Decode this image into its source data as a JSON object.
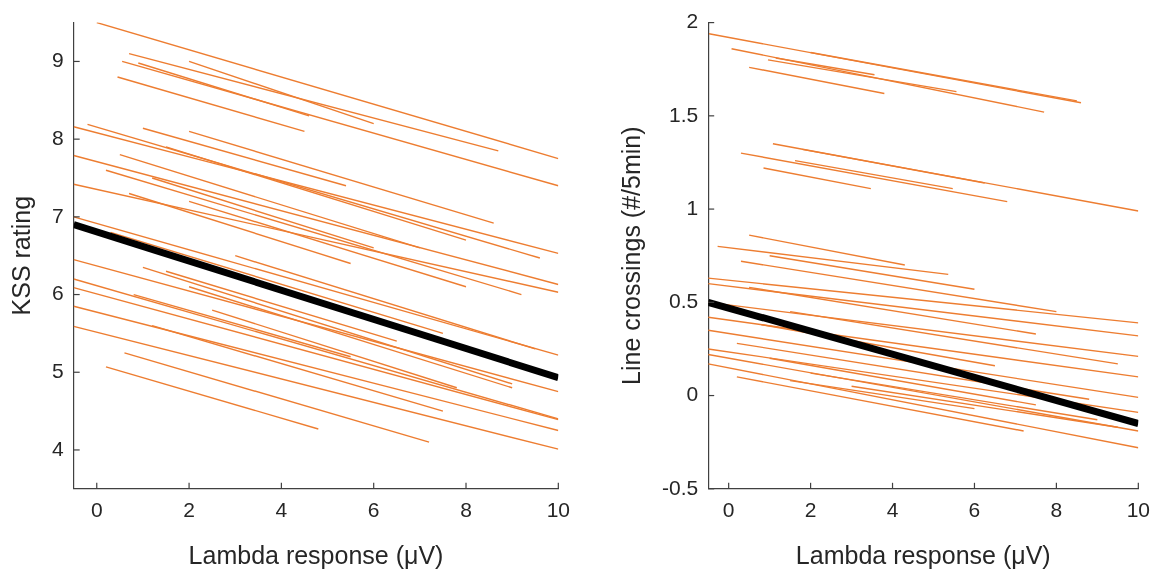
{
  "chart_data": [
    {
      "type": "line",
      "xlabel": "Lambda response (μV)",
      "ylabel": "KSS rating",
      "xlim": [
        -0.5,
        10
      ],
      "xticks": [
        0,
        2,
        4,
        6,
        8,
        10
      ],
      "ylim": [
        3.5,
        9.5
      ],
      "yticks": [
        4,
        5,
        6,
        7,
        8,
        9
      ],
      "series": [
        {
          "color": "#ed7d31",
          "x": [
            0,
            10
          ],
          "values": [
            9.5,
            7.75
          ]
        },
        {
          "color": "#ed7d31",
          "x": [
            0.7,
            8.7
          ],
          "values": [
            9.1,
            7.85
          ]
        },
        {
          "color": "#ed7d31",
          "x": [
            2,
            6
          ],
          "values": [
            9.0,
            8.2
          ]
        },
        {
          "color": "#ed7d31",
          "x": [
            0.55,
            10
          ],
          "values": [
            9.0,
            7.4
          ]
        },
        {
          "color": "#ed7d31",
          "x": [
            0.9,
            4.6
          ],
          "values": [
            8.98,
            8.3
          ]
        },
        {
          "color": "#ed7d31",
          "x": [
            0.45,
            4.5
          ],
          "values": [
            8.8,
            8.1
          ]
        },
        {
          "color": "#ed7d31",
          "x": [
            -0.5,
            10
          ],
          "values": [
            8.16,
            6.53
          ]
        },
        {
          "color": "#ed7d31",
          "x": [
            -0.2,
            9.6
          ],
          "values": [
            8.19,
            6.47
          ]
        },
        {
          "color": "#ed7d31",
          "x": [
            -0.5,
            10
          ],
          "values": [
            7.79,
            6.13
          ]
        },
        {
          "color": "#ed7d31",
          "x": [
            -0.5,
            10
          ],
          "values": [
            7.42,
            6.03
          ]
        },
        {
          "color": "#ed7d31",
          "x": [
            2,
            8.6
          ],
          "values": [
            8.1,
            6.92
          ]
        },
        {
          "color": "#ed7d31",
          "x": [
            1,
            5.4
          ],
          "values": [
            8.14,
            7.4
          ]
        },
        {
          "color": "#ed7d31",
          "x": [
            0.5,
            7
          ],
          "values": [
            7.8,
            6.6
          ]
        },
        {
          "color": "#ed7d31",
          "x": [
            1.5,
            8
          ],
          "values": [
            7.9,
            6.7
          ]
        },
        {
          "color": "#ed7d31",
          "x": [
            0.2,
            9.2
          ],
          "values": [
            7.6,
            6.0
          ]
        },
        {
          "color": "#ed7d31",
          "x": [
            1.2,
            6
          ],
          "values": [
            7.5,
            6.6
          ]
        },
        {
          "color": "#ed7d31",
          "x": [
            0.7,
            5.5
          ],
          "values": [
            7.3,
            6.4
          ]
        },
        {
          "color": "#ed7d31",
          "x": [
            -0.5,
            10
          ],
          "values": [
            7.0,
            5.22
          ]
        },
        {
          "color": "#ed7d31",
          "x": [
            2,
            8
          ],
          "values": [
            7.2,
            6.1
          ]
        },
        {
          "color": "#ed7d31",
          "x": [
            0.3,
            7.5
          ],
          "values": [
            6.8,
            5.5
          ]
        },
        {
          "color": "#ed7d31",
          "x": [
            1,
            9
          ],
          "values": [
            6.35,
            4.85
          ]
        },
        {
          "color": "#ed7d31",
          "x": [
            -0.5,
            10
          ],
          "values": [
            6.45,
            4.75
          ]
        },
        {
          "color": "#ed7d31",
          "x": [
            1.5,
            6.5
          ],
          "values": [
            6.3,
            5.4
          ]
        },
        {
          "color": "#ed7d31",
          "x": [
            -0.5,
            10
          ],
          "values": [
            6.2,
            4.4
          ]
        },
        {
          "color": "#ed7d31",
          "x": [
            0.8,
            5.5
          ],
          "values": [
            6.0,
            5.2
          ]
        },
        {
          "color": "#ed7d31",
          "x": [
            2,
            9
          ],
          "values": [
            6.1,
            4.8
          ]
        },
        {
          "color": "#ed7d31",
          "x": [
            -0.5,
            10
          ],
          "values": [
            6.09,
            4.39
          ]
        },
        {
          "color": "#ed7d31",
          "x": [
            -0.5,
            10
          ],
          "values": [
            5.85,
            4.25
          ]
        },
        {
          "color": "#ed7d31",
          "x": [
            1.2,
            7.5
          ],
          "values": [
            5.6,
            4.5
          ]
        },
        {
          "color": "#ed7d31",
          "x": [
            0.6,
            7.2
          ],
          "values": [
            5.25,
            4.1
          ]
        },
        {
          "color": "#ed7d31",
          "x": [
            0.2,
            4.8
          ],
          "values": [
            5.07,
            4.27
          ]
        },
        {
          "color": "#ed7d31",
          "x": [
            -0.5,
            10
          ],
          "values": [
            5.59,
            4.01
          ]
        },
        {
          "color": "#ed7d31",
          "x": [
            3,
            9.5
          ],
          "values": [
            6.5,
            5.3
          ]
        },
        {
          "color": "#ed7d31",
          "x": [
            2.5,
            7.8
          ],
          "values": [
            5.8,
            4.8
          ]
        },
        {
          "color": "#000000",
          "x": [
            -0.5,
            10
          ],
          "values": [
            6.9,
            4.93
          ]
        }
      ]
    },
    {
      "type": "line",
      "xlabel": "Lambda response (μV)",
      "ylabel": "Line crossings (#/5min)",
      "xlim": [
        -0.5,
        10
      ],
      "xticks": [
        0,
        2,
        4,
        6,
        8,
        10
      ],
      "ylim": [
        -0.5,
        2
      ],
      "yticks": [
        -0.5,
        0,
        0.5,
        1,
        1.5,
        2
      ],
      "series": [
        {
          "color": "#ed7d31",
          "x": [
            -0.48,
            8.6
          ],
          "values": [
            1.94,
            1.57
          ]
        },
        {
          "color": "#ed7d31",
          "x": [
            0.07,
            7.7
          ],
          "values": [
            1.86,
            1.52
          ]
        },
        {
          "color": "#ed7d31",
          "x": [
            1.15,
            3.56
          ],
          "values": [
            1.81,
            1.72
          ]
        },
        {
          "color": "#ed7d31",
          "x": [
            0.96,
            5.56
          ],
          "values": [
            1.8,
            1.63
          ]
        },
        {
          "color": "#ed7d31",
          "x": [
            0.5,
            3.8
          ],
          "values": [
            1.76,
            1.62
          ]
        },
        {
          "color": "#ed7d31",
          "x": [
            2,
            8.5
          ],
          "values": [
            1.84,
            1.58
          ]
        },
        {
          "color": "#ed7d31",
          "x": [
            1.08,
            6.25
          ],
          "values": [
            1.35,
            1.14
          ]
        },
        {
          "color": "#ed7d31",
          "x": [
            0.3,
            6.8
          ],
          "values": [
            1.3,
            1.04
          ]
        },
        {
          "color": "#ed7d31",
          "x": [
            1.62,
            5.47
          ],
          "values": [
            1.26,
            1.11
          ]
        },
        {
          "color": "#ed7d31",
          "x": [
            0.85,
            3.47
          ],
          "values": [
            1.22,
            1.11
          ]
        },
        {
          "color": "#ed7d31",
          "x": [
            1.8,
            10
          ],
          "values": [
            1.32,
            0.99
          ]
        },
        {
          "color": "#ed7d31",
          "x": [
            0.5,
            4.3
          ],
          "values": [
            0.86,
            0.7
          ]
        },
        {
          "color": "#ed7d31",
          "x": [
            -0.27,
            5.36
          ],
          "values": [
            0.8,
            0.65
          ]
        },
        {
          "color": "#ed7d31",
          "x": [
            -0.5,
            10
          ],
          "values": [
            0.63,
            0.39
          ]
        },
        {
          "color": "#ed7d31",
          "x": [
            0.3,
            8
          ],
          "values": [
            0.72,
            0.45
          ]
        },
        {
          "color": "#ed7d31",
          "x": [
            1,
            6
          ],
          "values": [
            0.75,
            0.57
          ]
        },
        {
          "color": "#ed7d31",
          "x": [
            -0.5,
            10
          ],
          "values": [
            0.6,
            0.32
          ]
        },
        {
          "color": "#ed7d31",
          "x": [
            0.5,
            7.5
          ],
          "values": [
            0.58,
            0.33
          ]
        },
        {
          "color": "#ed7d31",
          "x": [
            -0.5,
            10
          ],
          "values": [
            0.5,
            0.21
          ]
        },
        {
          "color": "#ed7d31",
          "x": [
            1.5,
            9.5
          ],
          "values": [
            0.45,
            0.17
          ]
        },
        {
          "color": "#ed7d31",
          "x": [
            -0.5,
            10
          ],
          "values": [
            0.42,
            0.1
          ]
        },
        {
          "color": "#ed7d31",
          "x": [
            0.8,
            6.5
          ],
          "values": [
            0.38,
            0.16
          ]
        },
        {
          "color": "#ed7d31",
          "x": [
            -0.5,
            10
          ],
          "values": [
            0.35,
            -0.01
          ]
        },
        {
          "color": "#ed7d31",
          "x": [
            0.2,
            8.8
          ],
          "values": [
            0.28,
            -0.02
          ]
        },
        {
          "color": "#ed7d31",
          "x": [
            -0.5,
            10
          ],
          "values": [
            0.25,
            -0.09
          ]
        },
        {
          "color": "#ed7d31",
          "x": [
            1,
            7.5
          ],
          "values": [
            0.2,
            -0.05
          ]
        },
        {
          "color": "#ed7d31",
          "x": [
            -0.5,
            10
          ],
          "values": [
            0.22,
            -0.19
          ]
        },
        {
          "color": "#ed7d31",
          "x": [
            2,
            9
          ],
          "values": [
            0.12,
            -0.13
          ]
        },
        {
          "color": "#ed7d31",
          "x": [
            0.2,
            7.2
          ],
          "values": [
            0.1,
            -0.19
          ]
        },
        {
          "color": "#ed7d31",
          "x": [
            -0.5,
            10
          ],
          "values": [
            0.17,
            -0.28
          ]
        },
        {
          "color": "#ed7d31",
          "x": [
            1.5,
            6
          ],
          "values": [
            0.08,
            -0.07
          ]
        },
        {
          "color": "#ed7d31",
          "x": [
            3,
            9.5
          ],
          "values": [
            0.05,
            -0.17
          ]
        },
        {
          "color": "#000000",
          "x": [
            -0.5,
            10
          ],
          "values": [
            0.5,
            -0.15
          ]
        }
      ]
    }
  ]
}
